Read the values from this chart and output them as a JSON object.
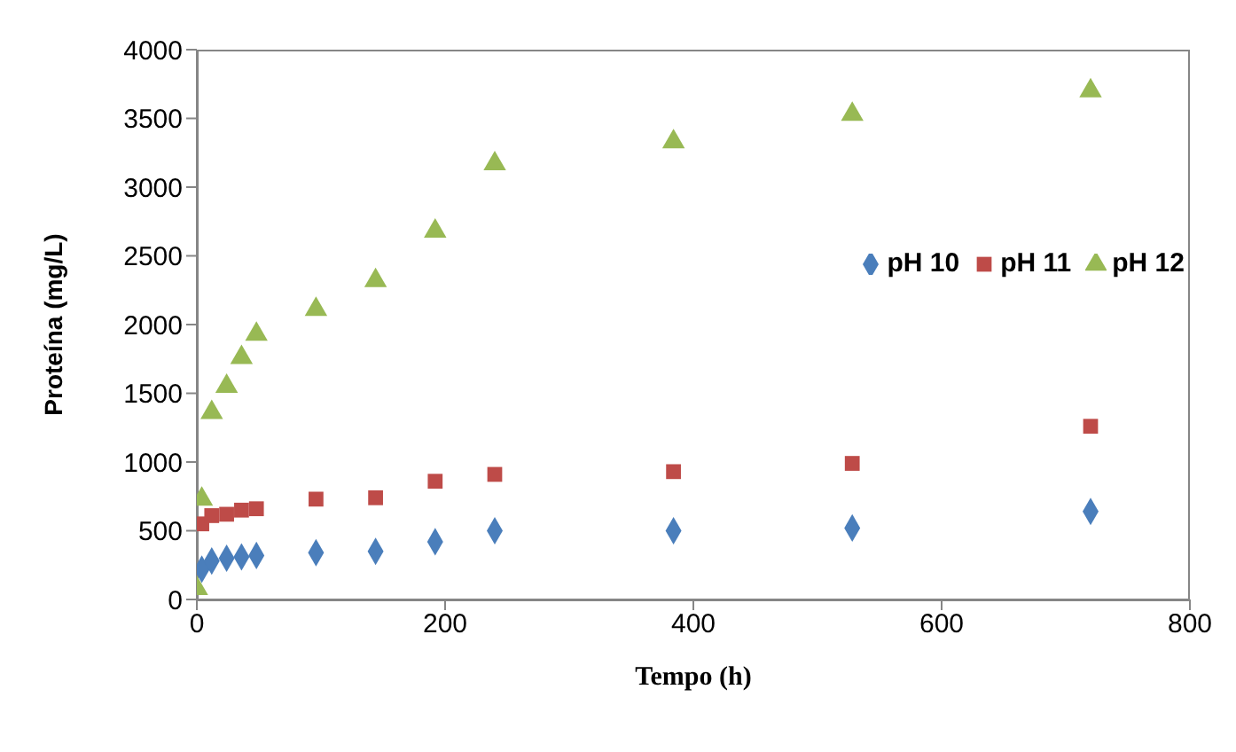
{
  "chart_data": {
    "type": "scatter",
    "xlabel": "Tempo (h)",
    "ylabel": "Proteína (mg/L)",
    "xlim": [
      0,
      800
    ],
    "xticks": [
      0,
      200,
      400,
      600,
      800
    ],
    "ylim": [
      0,
      4000
    ],
    "yticks": [
      0,
      500,
      1000,
      1500,
      2000,
      2500,
      3000,
      3500,
      4000
    ],
    "grid": false,
    "legend": "right",
    "x": [
      0,
      4,
      12,
      24,
      36,
      48,
      96,
      144,
      192,
      240,
      384,
      528,
      720
    ],
    "series": [
      {
        "name": "pH 10",
        "color": "#4a7ebb",
        "marker": "diamond",
        "values": [
          null,
          220,
          280,
          300,
          310,
          320,
          340,
          350,
          420,
          500,
          500,
          520,
          640
        ]
      },
      {
        "name": "pH 11",
        "color": "#be4b48",
        "marker": "square",
        "values": [
          null,
          550,
          610,
          620,
          650,
          660,
          730,
          740,
          860,
          910,
          930,
          990,
          1260
        ]
      },
      {
        "name": "pH 12",
        "color": "#98b954",
        "marker": "triangle",
        "values": [
          80,
          730,
          1360,
          1550,
          1760,
          1930,
          2110,
          2320,
          2680,
          3170,
          3330,
          3530,
          3700
        ]
      }
    ]
  }
}
